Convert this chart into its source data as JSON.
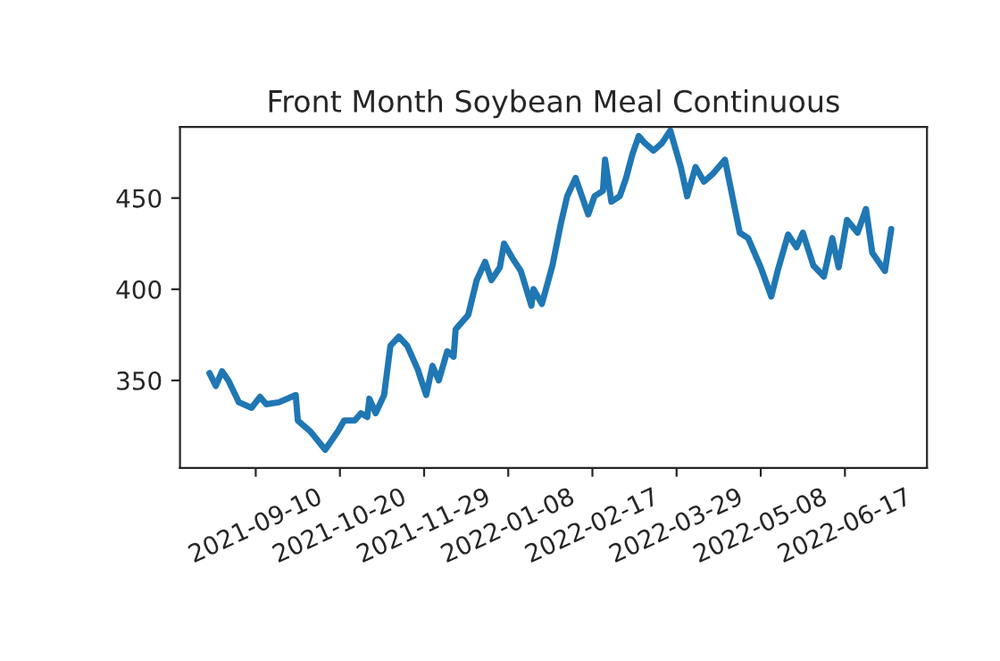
{
  "chart_data": {
    "type": "line",
    "title": "Front Month Soybean Meal Continuous",
    "x": [
      "2021-08-19",
      "2021-08-22",
      "2021-08-25",
      "2021-08-28",
      "2021-09-02",
      "2021-09-08",
      "2021-09-12",
      "2021-09-15",
      "2021-09-21",
      "2021-09-29",
      "2021-09-30",
      "2021-10-06",
      "2021-10-13",
      "2021-10-19",
      "2021-10-22",
      "2021-10-27",
      "2021-10-30",
      "2021-11-02",
      "2021-11-03",
      "2021-11-06",
      "2021-11-10",
      "2021-11-13",
      "2021-11-17",
      "2021-11-21",
      "2021-11-26",
      "2021-11-30",
      "2021-12-03",
      "2021-12-06",
      "2021-12-10",
      "2021-12-13",
      "2021-12-14",
      "2021-12-20",
      "2021-12-24",
      "2021-12-28",
      "2021-12-31",
      "2022-01-04",
      "2022-01-06",
      "2022-01-10",
      "2022-01-14",
      "2022-01-19",
      "2022-01-20",
      "2022-01-24",
      "2022-01-29",
      "2022-02-02",
      "2022-02-05",
      "2022-02-09",
      "2022-02-15",
      "2022-02-18",
      "2022-02-22",
      "2022-02-23",
      "2022-02-26",
      "2022-03-02",
      "2022-03-05",
      "2022-03-08",
      "2022-03-11",
      "2022-03-14",
      "2022-03-18",
      "2022-03-22",
      "2022-03-26",
      "2022-03-31",
      "2022-04-03",
      "2022-04-07",
      "2022-04-11",
      "2022-04-15",
      "2022-04-21",
      "2022-04-28",
      "2022-05-02",
      "2022-05-08",
      "2022-05-13",
      "2022-05-16",
      "2022-05-21",
      "2022-05-25",
      "2022-05-28",
      "2022-06-02",
      "2022-06-07",
      "2022-06-11",
      "2022-06-14",
      "2022-06-18",
      "2022-06-23",
      "2022-06-27",
      "2022-06-30",
      "2022-07-06",
      "2022-07-09"
    ],
    "series": [
      {
        "color": "#1f77b4",
        "values": [
          354,
          347,
          355,
          350,
          338,
          335,
          341,
          337,
          338,
          342,
          328,
          322,
          312,
          322,
          328,
          328,
          332,
          330,
          340,
          332,
          342,
          369,
          374,
          369,
          356,
          342,
          358,
          350,
          366,
          363,
          378,
          386,
          405,
          415,
          405,
          412,
          425,
          417,
          410,
          391,
          400,
          392,
          413,
          436,
          451,
          461,
          441,
          451,
          454,
          471,
          448,
          451,
          461,
          474,
          484,
          480,
          476,
          480,
          487,
          467,
          451,
          467,
          459,
          463,
          471,
          431,
          428,
          412,
          396,
          410,
          430,
          423,
          431,
          413,
          407,
          428,
          412,
          438,
          431,
          444,
          420,
          410,
          433
        ]
      }
    ],
    "xlim": [
      "2021-08-05",
      "2022-07-26"
    ],
    "ylim": [
      302,
      489
    ],
    "xticks": [
      {
        "value": "2021-09-10",
        "label": "2021-09-10"
      },
      {
        "value": "2021-10-20",
        "label": "2021-10-20"
      },
      {
        "value": "2021-11-29",
        "label": "2021-11-29"
      },
      {
        "value": "2022-01-08",
        "label": "2022-01-08"
      },
      {
        "value": "2022-02-17",
        "label": "2022-02-17"
      },
      {
        "value": "2022-03-29",
        "label": "2022-03-29"
      },
      {
        "value": "2022-05-08",
        "label": "2022-05-08"
      },
      {
        "value": "2022-06-17",
        "label": "2022-06-17"
      }
    ],
    "yticks": [
      350,
      400,
      450
    ],
    "grid": false,
    "legend": false,
    "line_style": "solid",
    "marker": "none"
  }
}
